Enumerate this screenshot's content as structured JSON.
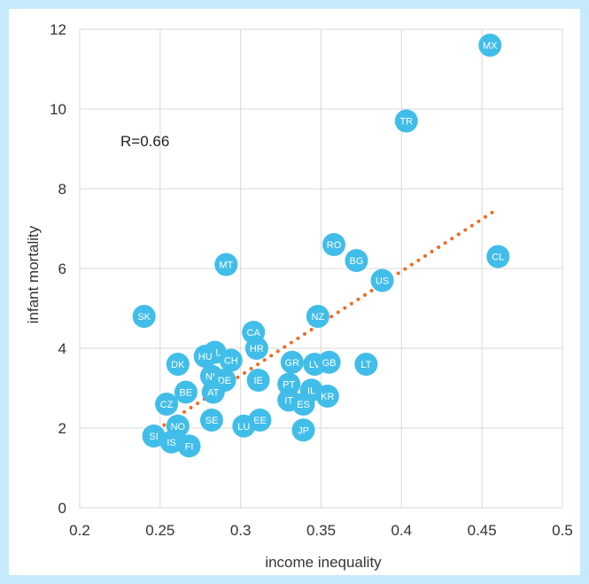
{
  "chart_data": {
    "type": "scatter",
    "xlabel": "income inequality",
    "ylabel": "infant mortality",
    "annotation": "R=0.66",
    "xlim": [
      0.2,
      0.5
    ],
    "ylim": [
      0,
      12
    ],
    "x_ticks": [
      "0.2",
      "0.25",
      "0.3",
      "0.35",
      "0.4",
      "0.45",
      "0.5"
    ],
    "y_ticks": [
      "0",
      "2",
      "4",
      "6",
      "8",
      "10",
      "12"
    ],
    "grid": true,
    "legend": "none",
    "point_color": "#41bde9",
    "trend_color": "#f06a22",
    "trendline": {
      "style": "dotted",
      "x": [
        0.24,
        0.46
      ],
      "y": [
        1.75,
        7.5
      ]
    },
    "points": [
      {
        "label": "MX",
        "x": 0.455,
        "y": 11.6
      },
      {
        "label": "TR",
        "x": 0.403,
        "y": 9.7
      },
      {
        "label": "CL",
        "x": 0.46,
        "y": 6.3
      },
      {
        "label": "RO",
        "x": 0.358,
        "y": 6.6
      },
      {
        "label": "BG",
        "x": 0.372,
        "y": 6.2
      },
      {
        "label": "US",
        "x": 0.388,
        "y": 5.7
      },
      {
        "label": "MT",
        "x": 0.291,
        "y": 6.1
      },
      {
        "label": "SK",
        "x": 0.24,
        "y": 4.8
      },
      {
        "label": "NZ",
        "x": 0.348,
        "y": 4.8
      },
      {
        "label": "CA",
        "x": 0.308,
        "y": 4.4
      },
      {
        "label": "HR",
        "x": 0.31,
        "y": 4.0
      },
      {
        "label": "PL",
        "x": 0.284,
        "y": 3.9
      },
      {
        "label": "HU",
        "x": 0.278,
        "y": 3.8
      },
      {
        "label": "CH",
        "x": 0.294,
        "y": 3.7
      },
      {
        "label": "DK",
        "x": 0.261,
        "y": 3.6
      },
      {
        "label": "GR",
        "x": 0.332,
        "y": 3.65
      },
      {
        "label": "LV",
        "x": 0.346,
        "y": 3.6
      },
      {
        "label": "GB",
        "x": 0.355,
        "y": 3.65
      },
      {
        "label": "LT",
        "x": 0.378,
        "y": 3.6
      },
      {
        "label": "NL",
        "x": 0.282,
        "y": 3.3
      },
      {
        "label": "DE",
        "x": 0.29,
        "y": 3.2
      },
      {
        "label": "IE",
        "x": 0.311,
        "y": 3.2
      },
      {
        "label": "PT",
        "x": 0.33,
        "y": 3.1
      },
      {
        "label": "IL",
        "x": 0.344,
        "y": 2.95
      },
      {
        "label": "AT",
        "x": 0.283,
        "y": 2.9
      },
      {
        "label": "BE",
        "x": 0.266,
        "y": 2.9
      },
      {
        "label": "KR",
        "x": 0.354,
        "y": 2.8
      },
      {
        "label": "IT",
        "x": 0.33,
        "y": 2.7
      },
      {
        "label": "ES",
        "x": 0.339,
        "y": 2.6
      },
      {
        "label": "CZ",
        "x": 0.254,
        "y": 2.6
      },
      {
        "label": "SE",
        "x": 0.282,
        "y": 2.2
      },
      {
        "label": "EE",
        "x": 0.312,
        "y": 2.2
      },
      {
        "label": "LU",
        "x": 0.302,
        "y": 2.05
      },
      {
        "label": "NO",
        "x": 0.261,
        "y": 2.05
      },
      {
        "label": "JP",
        "x": 0.339,
        "y": 1.95
      },
      {
        "label": "SI",
        "x": 0.246,
        "y": 1.8
      },
      {
        "label": "IS",
        "x": 0.257,
        "y": 1.65
      },
      {
        "label": "FI",
        "x": 0.268,
        "y": 1.55
      }
    ]
  }
}
